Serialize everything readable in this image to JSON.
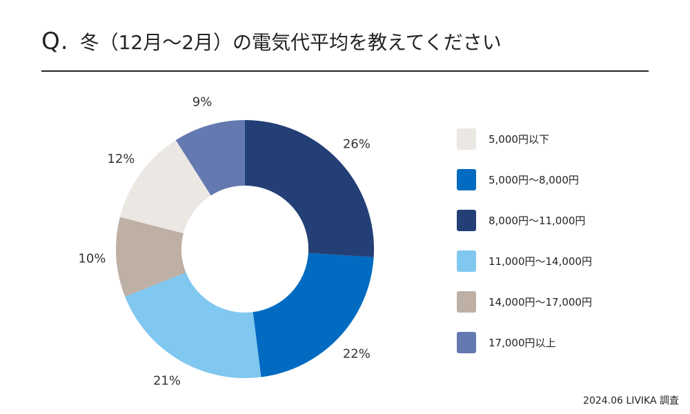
{
  "header": {
    "q_mark": "Q.",
    "question": "冬（12月〜2月）の電気代平均を教えてください"
  },
  "chart_data": {
    "type": "donut",
    "title": "冬（12月〜2月）の電気代平均を教えてください",
    "start_angle_deg": 0,
    "direction": "clockwise",
    "slice_order": [
      2,
      1,
      3,
      4,
      0,
      5
    ],
    "categories": [
      "5,000円以下",
      "5,000円〜8,000円",
      "8,000円〜11,000円",
      "11,000円〜14,000円",
      "14,000円〜17,000円",
      "17,000円以上"
    ],
    "values": [
      12,
      22,
      26,
      21,
      10,
      9
    ],
    "labels": [
      "12%",
      "22%",
      "26%",
      "21%",
      "10%",
      "9%"
    ],
    "colors": [
      "#ebe7e3",
      "#006bc0",
      "#233f76",
      "#80c8f0",
      "#bfb0a6",
      "#6479b0"
    ]
  },
  "legend": {
    "items": [
      {
        "label": "5,000円以下",
        "color": "#ebe7e3"
      },
      {
        "label": "5,000円〜8,000円",
        "color": "#006bc0"
      },
      {
        "label": "8,000円〜11,000円",
        "color": "#233f76"
      },
      {
        "label": "11,000円〜14,000円",
        "color": "#80c8f0"
      },
      {
        "label": "14,000円〜17,000円",
        "color": "#bfb0a6"
      },
      {
        "label": "17,000円以上",
        "color": "#6479b0"
      }
    ]
  },
  "footer": {
    "source": "2024.06 LIVIKA 調査"
  }
}
